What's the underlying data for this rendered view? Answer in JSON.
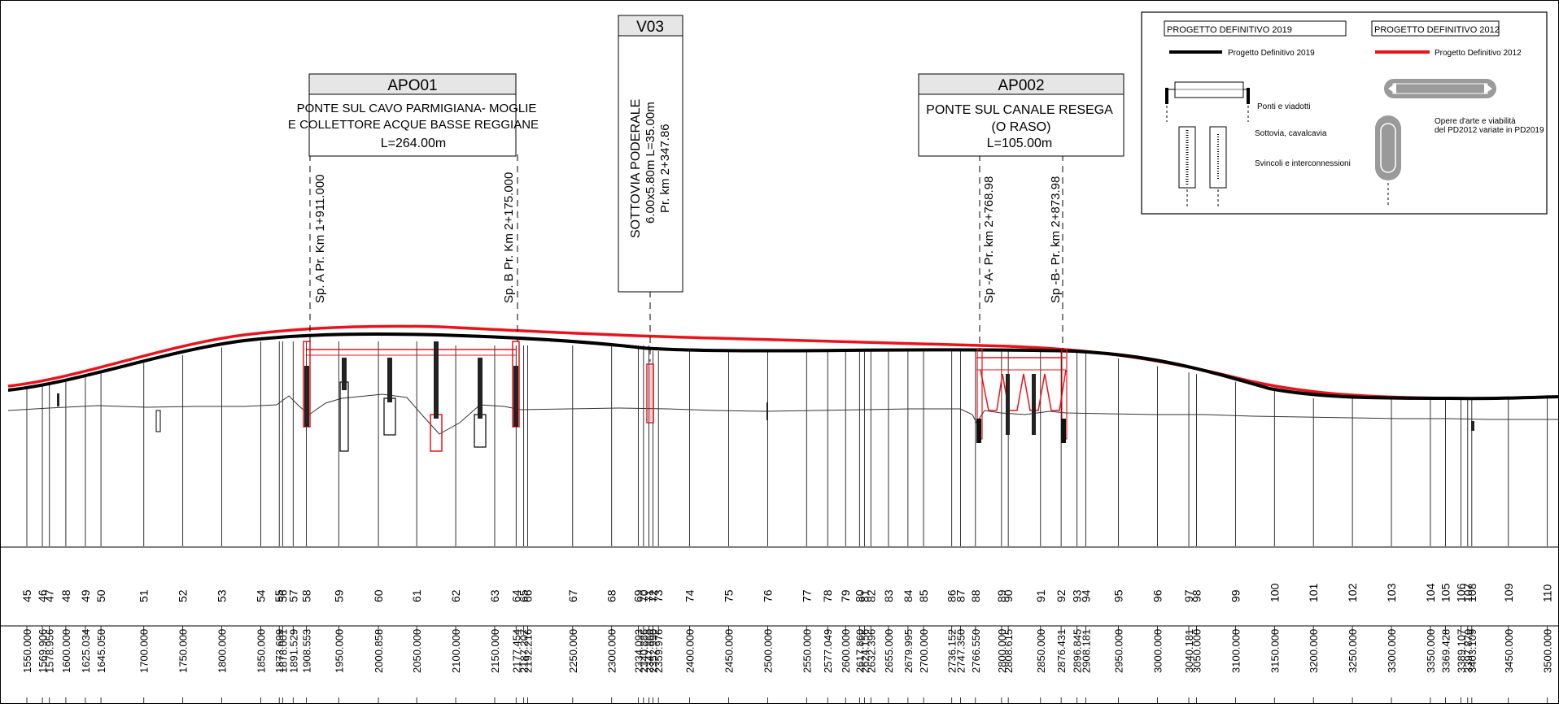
{
  "boxes": {
    "apo01": {
      "title": "APO01",
      "line1": "PONTE SUL CAVO PARMIGIANA- MOGLIE",
      "line2": "E COLLETTORE ACQUE BASSE REGGIANE",
      "line3": "L=264.00m",
      "marker_a": "Sp. A Pr. Km 1+911.000",
      "marker_b": "Sp. B Pr. Km 2+175.000"
    },
    "v03": {
      "title": "V03",
      "line1": "SOTTOVIA PODERALE",
      "line2": "6.00x5.80m L=35.00m",
      "line3": "Pr. km 2+347.86"
    },
    "ap002": {
      "title": "AP002",
      "line1": "PONTE SUL CANALE RESEGA",
      "line2": "(O RASO)",
      "line3": "L=105.00m",
      "marker_a": "Sp -A- Pr. km 2+768.98",
      "marker_b": "Sp -B- Pr. km 2+873.98"
    }
  },
  "legend": {
    "header_2019": "PROGETTO DEFINITIVO 2019",
    "header_2012": "PROGETTO DEFINITIVO 2012",
    "line_2019": "Progetto Definitivo 2019",
    "line_2012": "Progetto Definitivo 2012",
    "ponti": "Ponti e viadotti",
    "sottovia": "Sottovia, cavalcavia",
    "svincoli": "Svincoli e interconnessioni",
    "opere_1": "Opere d'arte e viabilità",
    "opere_2": "del PD2012 variate in PD2019",
    "colors": {
      "pd2019": "#000000",
      "pd2012": "#e8141c"
    }
  },
  "stations": [
    {
      "n": "45",
      "d": "1550.000"
    },
    {
      "n": "46",
      "d": "1569.906"
    },
    {
      "n": "47",
      "d": "1578.956"
    },
    {
      "n": "48",
      "d": "1600.000"
    },
    {
      "n": "49",
      "d": "1625.034"
    },
    {
      "n": "50",
      "d": "1645.050"
    },
    {
      "n": "51",
      "d": "1700.000"
    },
    {
      "n": "52",
      "d": "1750.000"
    },
    {
      "n": "53",
      "d": "1800.000"
    },
    {
      "n": "54",
      "d": "1850.000"
    },
    {
      "n": "55",
      "d": "1873.699"
    },
    {
      "n": "56",
      "d": "1878.001"
    },
    {
      "n": "57",
      "d": "1891.529"
    },
    {
      "n": "58",
      "d": "1908.553"
    },
    {
      "n": "59",
      "d": "1950.000"
    },
    {
      "n": "60",
      "d": "2000.858"
    },
    {
      "n": "61",
      "d": "2050.000"
    },
    {
      "n": "62",
      "d": "2100.000"
    },
    {
      "n": "63",
      "d": "2150.000"
    },
    {
      "n": "64",
      "d": "2177.454"
    },
    {
      "n": "65",
      "d": "2187.207"
    },
    {
      "n": "66",
      "d": "2192.216"
    },
    {
      "n": "67",
      "d": "2250.000"
    },
    {
      "n": "68",
      "d": "2300.000"
    },
    {
      "n": "69",
      "d": "2334.093"
    },
    {
      "n": "70",
      "d": "2340.886"
    },
    {
      "n": "71",
      "d": "2347.860"
    },
    {
      "n": "72",
      "d": "2352.990"
    },
    {
      "n": "73",
      "d": "2359.976"
    },
    {
      "n": "74",
      "d": "2400.000"
    },
    {
      "n": "75",
      "d": "2450.000"
    },
    {
      "n": "76",
      "d": "2500.000"
    },
    {
      "n": "77",
      "d": "2550.000"
    },
    {
      "n": "78",
      "d": "2577.049"
    },
    {
      "n": "79",
      "d": "2600.000"
    },
    {
      "n": "80",
      "d": "2617.860"
    },
    {
      "n": "81",
      "d": "2624.156"
    },
    {
      "n": "82",
      "d": "2632.396"
    },
    {
      "n": "83",
      "d": "2655.000"
    },
    {
      "n": "84",
      "d": "2679.995"
    },
    {
      "n": "85",
      "d": "2700.000"
    },
    {
      "n": "86",
      "d": "2736.152"
    },
    {
      "n": "87",
      "d": "2747.350"
    },
    {
      "n": "88",
      "d": "2766.550"
    },
    {
      "n": "89",
      "d": "2800.000"
    },
    {
      "n": "90",
      "d": "2808.615"
    },
    {
      "n": "91",
      "d": "2850.000"
    },
    {
      "n": "92",
      "d": "2876.431"
    },
    {
      "n": "93",
      "d": "2896.845"
    },
    {
      "n": "94",
      "d": "2908.181"
    },
    {
      "n": "95",
      "d": "2950.000"
    },
    {
      "n": "96",
      "d": "3000.000"
    },
    {
      "n": "97",
      "d": "3040.181"
    },
    {
      "n": "98",
      "d": "3050.000"
    },
    {
      "n": "99",
      "d": "3100.000"
    },
    {
      "n": "100",
      "d": "3150.000"
    },
    {
      "n": "101",
      "d": "3200.000"
    },
    {
      "n": "102",
      "d": "3250.000"
    },
    {
      "n": "103",
      "d": "3300.000"
    },
    {
      "n": "104",
      "d": "3350.000"
    },
    {
      "n": "105",
      "d": "3369.428"
    },
    {
      "n": "106",
      "d": "3389.107"
    },
    {
      "n": "107",
      "d": "3397.870"
    },
    {
      "n": "108",
      "d": "3403.109"
    },
    {
      "n": "109",
      "d": "3450.000"
    },
    {
      "n": "110",
      "d": "3500.000"
    }
  ]
}
